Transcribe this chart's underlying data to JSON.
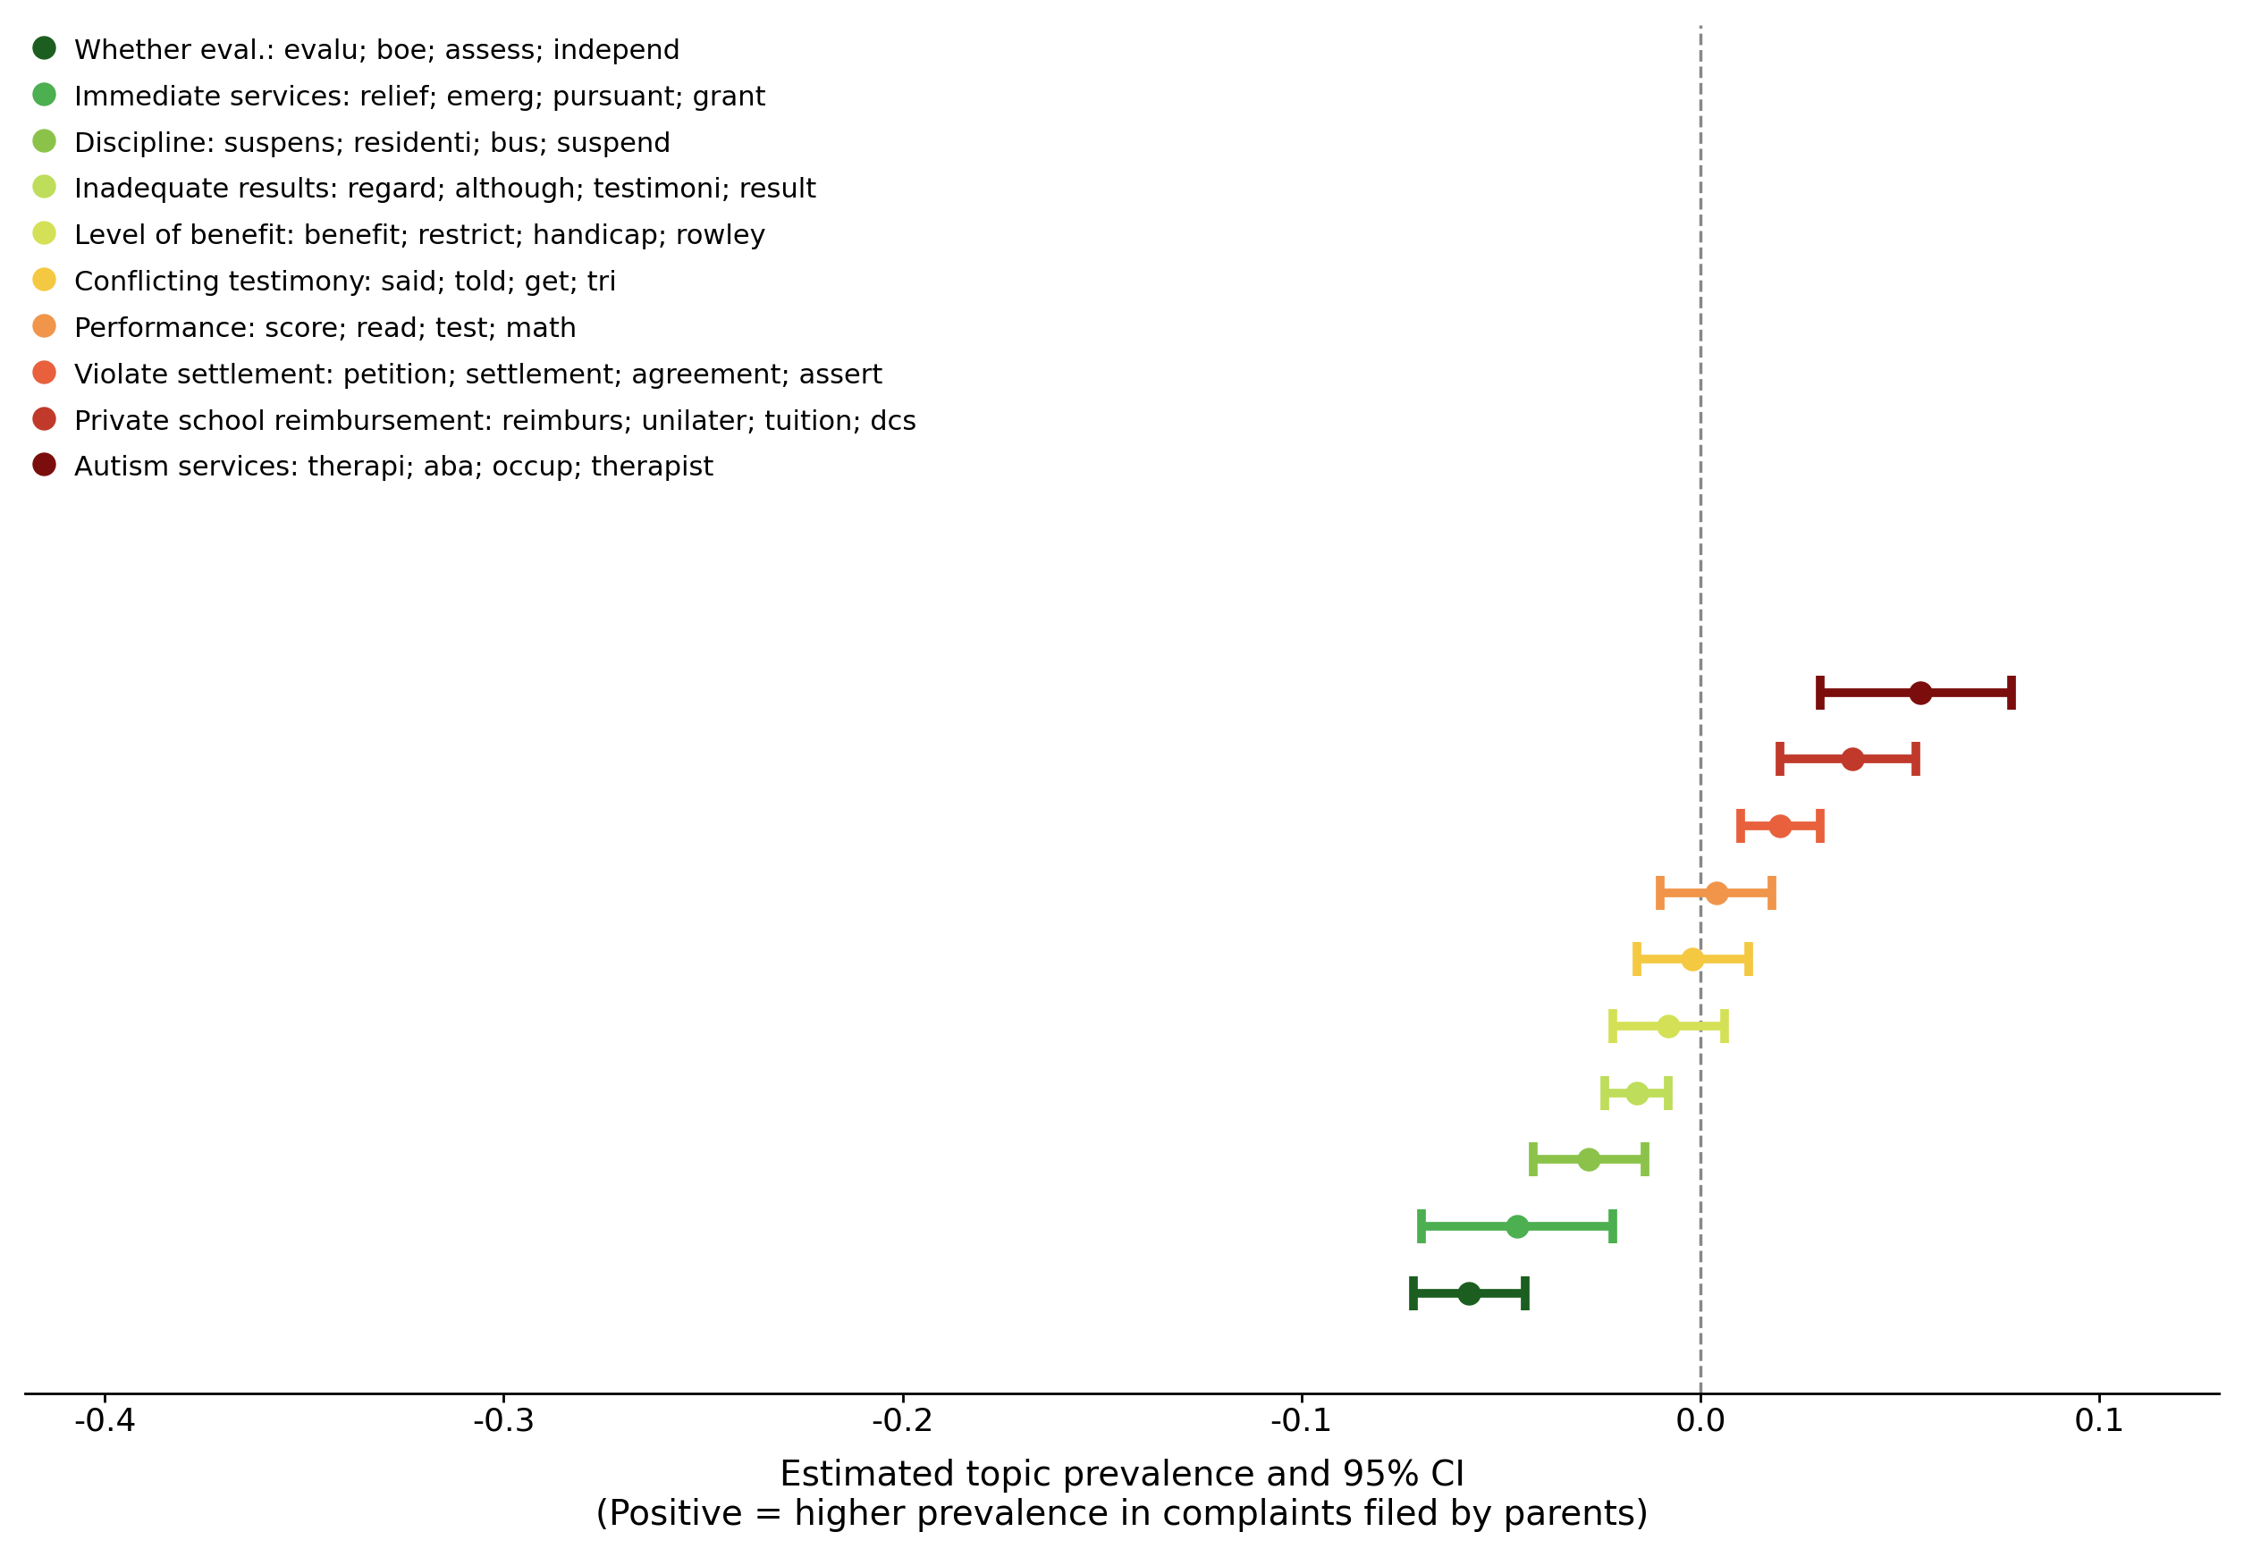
{
  "xlabel_line1": "Estimated topic prevalence and 95% CI",
  "xlabel_line2": "(Positive = higher prevalence in complaints filed by parents)",
  "xlim": [
    -0.42,
    0.13
  ],
  "xticks": [
    -0.4,
    -0.3,
    -0.2,
    -0.1,
    0.0,
    0.1
  ],
  "background_color": "#ffffff",
  "topics": [
    {
      "label": "Autism services: therapi; aba; occup; therapist",
      "color": "#7B0D0D",
      "est": 0.055,
      "ci_low": 0.03,
      "ci_high": 0.078,
      "y": 10
    },
    {
      "label": "Private school reimbursement: reimburs; unilater; tuition; dcs",
      "color": "#C0392B",
      "est": 0.038,
      "ci_low": 0.02,
      "ci_high": 0.054,
      "y": 9
    },
    {
      "label": "Violate settlement: petition; settlement; agreement; assert",
      "color": "#E8603C",
      "est": 0.02,
      "ci_low": 0.01,
      "ci_high": 0.03,
      "y": 8
    },
    {
      "label": "Performance: score; read; test; math",
      "color": "#F0954A",
      "est": 0.004,
      "ci_low": -0.01,
      "ci_high": 0.018,
      "y": 7
    },
    {
      "label": "Conflicting testimony: said; told; get; tri",
      "color": "#F5C842",
      "est": -0.002,
      "ci_low": -0.016,
      "ci_high": 0.012,
      "y": 6
    },
    {
      "label": "Level of benefit: benefit; restrict; handicap; rowley",
      "color": "#D4E157",
      "est": -0.008,
      "ci_low": -0.022,
      "ci_high": 0.006,
      "y": 5
    },
    {
      "label": "Inadequate results: regard; although; testimoni; result",
      "color": "#BEDD5A",
      "est": -0.016,
      "ci_low": -0.024,
      "ci_high": -0.008,
      "y": 4
    },
    {
      "label": "Discipline: suspens; residenti; bus; suspend",
      "color": "#8BC34A",
      "est": -0.028,
      "ci_low": -0.042,
      "ci_high": -0.014,
      "y": 3
    },
    {
      "label": "Immediate services: relief; emerg; pursuant; grant",
      "color": "#4CAF50",
      "est": -0.046,
      "ci_low": -0.07,
      "ci_high": -0.022,
      "y": 2
    },
    {
      "label": "Whether eval.: evalu; boe; assess; independ",
      "color": "#1B5E20",
      "est": -0.058,
      "ci_low": -0.072,
      "ci_high": -0.044,
      "y": 1
    }
  ],
  "legend_order": [
    {
      "label": "Whether eval.: evalu; boe; assess; independ",
      "color": "#1B5E20"
    },
    {
      "label": "Immediate services: relief; emerg; pursuant; grant",
      "color": "#4CAF50"
    },
    {
      "label": "Discipline: suspens; residenti; bus; suspend",
      "color": "#8BC34A"
    },
    {
      "label": "Inadequate results: regard; although; testimoni; result",
      "color": "#BEDD5A"
    },
    {
      "label": "Level of benefit: benefit; restrict; handicap; rowley",
      "color": "#D4E157"
    },
    {
      "label": "Conflicting testimony: said; told; get; tri",
      "color": "#F5C842"
    },
    {
      "label": "Performance: score; read; test; math",
      "color": "#F0954A"
    },
    {
      "label": "Violate settlement: petition; settlement; agreement; assert",
      "color": "#E8603C"
    },
    {
      "label": "Private school reimbursement: reimburs; unilater; tuition; dcs",
      "color": "#C0392B"
    },
    {
      "label": "Autism services: therapi; aba; occup; therapist",
      "color": "#7B0D0D"
    }
  ]
}
